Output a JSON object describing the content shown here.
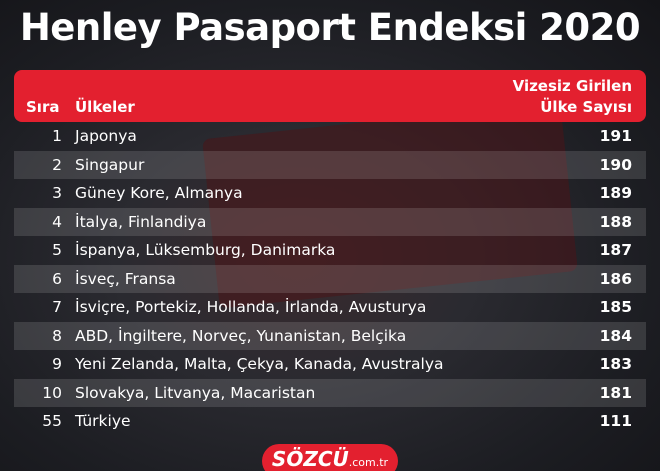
{
  "title": "Henley Pasaport Endeksi 2020",
  "table": {
    "header": {
      "rank": "Sıra",
      "countries": "Ülkeler",
      "count": [
        "Vizesiz Girilen",
        "Ülke Sayısı"
      ]
    },
    "rows": [
      [
        1,
        "Japonya",
        191
      ],
      [
        2,
        "Singapur",
        190
      ],
      [
        3,
        "Güney Kore, Almanya",
        189
      ],
      [
        4,
        "İtalya, Finlandiya",
        188
      ],
      [
        5,
        "İspanya, Lüksemburg, Danimarka",
        187
      ],
      [
        6,
        "İsveç, Fransa",
        186
      ],
      [
        7,
        "İsviçre, Portekiz, Hollanda, İrlanda, Avusturya",
        185
      ],
      [
        8,
        "ABD, İngiltere, Norveç, Yunanistan, Belçika",
        184
      ],
      [
        9,
        "Yeni Zelanda, Malta, Çekya, Kanada, Avustralya",
        183
      ],
      [
        10,
        "Slovakya, Litvanya, Macaristan",
        181
      ],
      [
        55,
        "Türkiye",
        111
      ]
    ]
  },
  "footer": {
    "brand": "SÖZCÜ",
    "domain": ".com.tr"
  }
}
